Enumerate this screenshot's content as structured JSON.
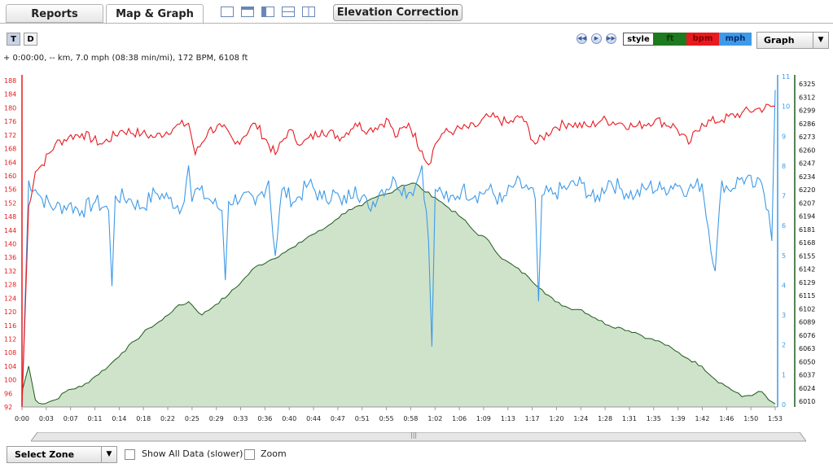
{
  "tabs": [
    {
      "label": "Reports",
      "active": false
    },
    {
      "label": "Map & Graph",
      "active": true
    }
  ],
  "elevation_correction_label": "Elevation Correction",
  "layout_icons": [
    "layout-full-icon",
    "layout-split-horizontal-icon",
    "layout-split-vertical-icon",
    "layout-grid-icon",
    "layout-quad-icon"
  ],
  "toggles": {
    "t_label": "T",
    "d_label": "D",
    "active": "T"
  },
  "nav_icons": [
    "rewind-icon",
    "play-icon",
    "fast-forward-icon"
  ],
  "legend": {
    "style_label": "style",
    "items": [
      {
        "label": "ft",
        "color": "#1e7a1e"
      },
      {
        "label": "bpm",
        "color": "#e8191f"
      },
      {
        "label": "mph",
        "color": "#3d9ae8"
      }
    ]
  },
  "view_select": {
    "value": "Graph"
  },
  "status_text": "+ 0:00:00, -- km, 7.0 mph (08:38 min/mi), 172 BPM, 6108 ft",
  "colors": {
    "hr": "#e8191f",
    "speed": "#3d9ae8",
    "elevation_line": "#1e5a1e",
    "elevation_fill": "#cfe3cb"
  },
  "chart_data": {
    "type": "line",
    "x_tick_labels": [
      "0:00",
      "0:03",
      "0:07",
      "0:11",
      "0:14",
      "0:18",
      "0:22",
      "0:25",
      "0:29",
      "0:33",
      "0:36",
      "0:40",
      "0:44",
      "0:47",
      "0:51",
      "0:55",
      "0:58",
      "1:02",
      "1:06",
      "1:09",
      "1:13",
      "1:17",
      "1:20",
      "1:24",
      "1:28",
      "1:31",
      "1:35",
      "1:39",
      "1:42",
      "1:46",
      "1:50",
      "1:53"
    ],
    "x_range_minutes": [
      0,
      113
    ],
    "bpm_axis": {
      "ticks": [
        92,
        96,
        100,
        104,
        108,
        112,
        116,
        120,
        124,
        128,
        132,
        136,
        140,
        144,
        148,
        152,
        156,
        160,
        164,
        168,
        172,
        176,
        180,
        184,
        188
      ],
      "range": [
        92,
        188
      ],
      "color": "#e8191f"
    },
    "mph_axis": {
      "ticks": [
        0,
        1,
        2,
        3,
        4,
        5,
        6,
        7,
        8,
        9,
        10,
        11
      ],
      "range": [
        0,
        11
      ],
      "color": "#3d9ae8"
    },
    "ft_axis": {
      "ticks": [
        6010,
        6024,
        6037,
        6050,
        6063,
        6076,
        6089,
        6102,
        6115,
        6129,
        6142,
        6155,
        6168,
        6181,
        6194,
        6207,
        6220,
        6234,
        6247,
        6260,
        6273,
        6286,
        6299,
        6312,
        6325
      ],
      "range": [
        6005,
        6330
      ],
      "color": "#1e7a1e"
    },
    "series": [
      {
        "name": "bpm",
        "axis": "bpm",
        "color": "#e8191f",
        "x": [
          0,
          1,
          2,
          3,
          5,
          7,
          9,
          12,
          15,
          18,
          20,
          23,
          25,
          26,
          28,
          30,
          32,
          35,
          38,
          40,
          42,
          45,
          48,
          50,
          52,
          55,
          56,
          58,
          60,
          61,
          62,
          63,
          65,
          68,
          70,
          73,
          75,
          77,
          80,
          82,
          85,
          87,
          90,
          92,
          95,
          98,
          100,
          102,
          105,
          108,
          110,
          113
        ],
        "values": [
          92,
          150,
          160,
          162,
          168,
          170,
          171,
          168,
          172,
          171,
          170,
          173,
          174,
          165,
          172,
          173,
          168,
          174,
          165,
          172,
          168,
          172,
          170,
          174,
          172,
          175,
          170,
          174,
          166,
          162,
          168,
          171,
          172,
          173,
          176,
          174,
          176,
          168,
          173,
          174,
          173,
          175,
          174,
          173,
          175,
          173,
          168,
          174,
          175,
          177,
          178,
          179
        ]
      },
      {
        "name": "mph",
        "axis": "mph",
        "color": "#3d9ae8",
        "x": [
          0,
          1,
          2,
          3,
          5,
          7,
          9,
          11,
          13,
          13.5,
          14,
          16,
          18,
          20,
          22,
          24,
          25,
          25.5,
          26,
          28,
          30,
          30.5,
          31,
          33,
          35,
          37,
          38,
          39,
          41,
          43,
          45,
          47,
          48,
          50,
          52,
          54,
          56,
          58,
          59,
          60,
          61,
          61.5,
          62,
          63,
          64,
          66,
          68,
          70,
          72,
          74,
          76,
          77,
          77.5,
          78,
          80,
          82,
          84,
          86,
          88,
          90,
          92,
          94,
          96,
          98,
          100,
          102,
          104,
          105,
          106,
          108,
          110,
          111,
          112,
          112.5,
          113
        ],
        "values": [
          0,
          7.5,
          7.2,
          6.9,
          6.6,
          6.7,
          6.5,
          6.8,
          6.5,
          4,
          7,
          6.9,
          6.6,
          7.1,
          6.9,
          6.6,
          8,
          6.8,
          7.2,
          6.9,
          6.5,
          4.2,
          6.8,
          7,
          6.7,
          7.5,
          5,
          7.2,
          6.8,
          7.4,
          6.9,
          7.1,
          6.7,
          7.3,
          6.6,
          7.2,
          7.5,
          7.1,
          7.3,
          8,
          5.5,
          2,
          7.2,
          7.1,
          6.8,
          7.2,
          7,
          7.2,
          6.8,
          7.4,
          7.2,
          6.9,
          3.5,
          7,
          7.1,
          7.3,
          7.4,
          6.8,
          7.5,
          7.2,
          7.0,
          7.3,
          7.2,
          7.4,
          7.2,
          7.4,
          4.5,
          7.5,
          7.2,
          7.6,
          7.3,
          7.4,
          6.5,
          5.5,
          10.5
        ]
      },
      {
        "name": "ft",
        "axis": "ft",
        "color": "#1e5a1e",
        "x": [
          0,
          1,
          2,
          3,
          5,
          7,
          9,
          11,
          13,
          15,
          17,
          19,
          21,
          23,
          25,
          27,
          29,
          31,
          33,
          35,
          37,
          39,
          41,
          43,
          45,
          47,
          49,
          51,
          53,
          55,
          57,
          59,
          60,
          62,
          64,
          66,
          68,
          70,
          72,
          74,
          76,
          78,
          80,
          82,
          84,
          86,
          88,
          90,
          92,
          94,
          96,
          98,
          100,
          102,
          104,
          106,
          108,
          110,
          111,
          112,
          113
        ],
        "values": [
          6020,
          6045,
          6012,
          6008,
          6012,
          6022,
          6025,
          6035,
          6045,
          6058,
          6070,
          6082,
          6090,
          6102,
          6108,
          6095,
          6105,
          6115,
          6128,
          6142,
          6148,
          6155,
          6162,
          6172,
          6178,
          6188,
          6198,
          6202,
          6210,
          6214,
          6222,
          6224,
          6218,
          6210,
          6200,
          6190,
          6176,
          6168,
          6150,
          6142,
          6132,
          6120,
          6108,
          6102,
          6100,
          6092,
          6085,
          6082,
          6078,
          6072,
          6068,
          6060,
          6052,
          6045,
          6032,
          6024,
          6015,
          6018,
          6020,
          6012,
          6008
        ]
      }
    ],
    "grid": false
  },
  "scrollbar_grip": "|||",
  "bottom": {
    "zone_select": "Select Zone",
    "show_all_label": "Show All Data (slower)",
    "zoom_label": "Zoom"
  }
}
